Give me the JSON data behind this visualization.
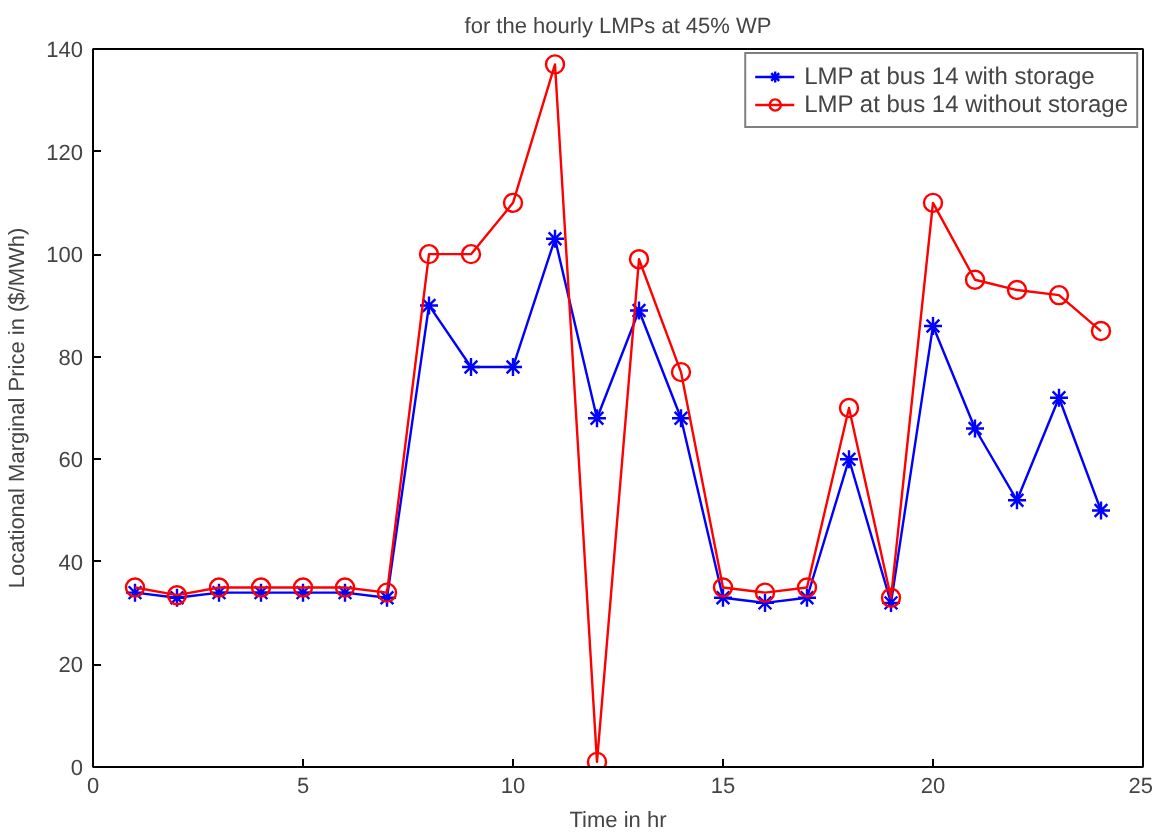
{
  "chart_data": {
    "type": "line",
    "title": "for the hourly LMPs at 45% WP",
    "xlabel": "Time in hr",
    "ylabel": "Locational Marginal Price in ($/MWh)",
    "x": [
      1,
      2,
      3,
      4,
      5,
      6,
      7,
      8,
      9,
      10,
      11,
      12,
      13,
      14,
      15,
      16,
      17,
      18,
      19,
      20,
      21,
      22,
      23,
      24
    ],
    "series": [
      {
        "name": "LMP at bus 14 with storage",
        "color": "#0000ff",
        "marker": "cross",
        "values": [
          34,
          33,
          34,
          34,
          34,
          34,
          33,
          90,
          78,
          78,
          103,
          68,
          89,
          68,
          33,
          32,
          33,
          60,
          32,
          86,
          66,
          52,
          72,
          50
        ]
      },
      {
        "name": "LMP at bus 14 without storage",
        "color": "#ff0000",
        "marker": "circle",
        "values": [
          35,
          33.5,
          35,
          35,
          35,
          35,
          34,
          100,
          100,
          110,
          137,
          1,
          99,
          77,
          35,
          34,
          35,
          70,
          33,
          110,
          95,
          93,
          92,
          85
        ]
      }
    ],
    "xlim": [
      0,
      25
    ],
    "xticks": [
      0,
      5,
      10,
      15,
      20,
      25
    ],
    "ylim": [
      0,
      140
    ],
    "yticks": [
      0,
      20,
      40,
      60,
      80,
      100,
      120,
      140
    ],
    "grid": false,
    "legend": "top right",
    "line_style": "solid"
  }
}
